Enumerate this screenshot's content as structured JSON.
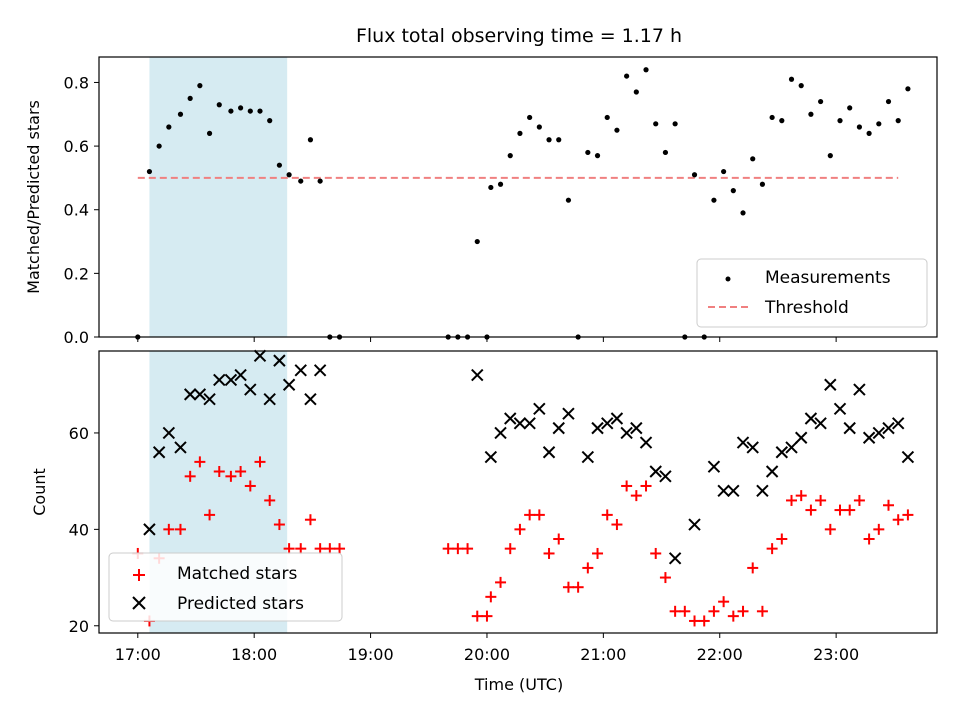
{
  "chart_data": [
    {
      "type": "scatter",
      "title": "Flux total observing time = 1.17 h",
      "xlabel": "",
      "ylabel": "Matched/Predicted stars",
      "ylim": [
        0,
        0.88
      ],
      "yticks": [
        0.0,
        0.2,
        0.4,
        0.6,
        0.8
      ],
      "ytick_labels": [
        "0.0",
        "0.2",
        "0.4",
        "0.6",
        "0.8"
      ],
      "shaded_interval": [
        "17:06",
        "18:17"
      ],
      "shaded_color": "#add8e6",
      "legend_position": "bottom-right",
      "series": [
        {
          "name": "Measurements",
          "marker": "dot",
          "color": "#000000",
          "points": [
            [
              "17:00",
              0.0
            ],
            [
              "17:06",
              0.52
            ],
            [
              "17:11",
              0.6
            ],
            [
              "17:16",
              0.66
            ],
            [
              "17:22",
              0.7
            ],
            [
              "17:27",
              0.75
            ],
            [
              "17:32",
              0.79
            ],
            [
              "17:37",
              0.64
            ],
            [
              "17:42",
              0.73
            ],
            [
              "17:48",
              0.71
            ],
            [
              "17:53",
              0.72
            ],
            [
              "17:58",
              0.71
            ],
            [
              "18:03",
              0.71
            ],
            [
              "18:08",
              0.68
            ],
            [
              "18:13",
              0.54
            ],
            [
              "18:18",
              0.51
            ],
            [
              "18:24",
              0.49
            ],
            [
              "18:29",
              0.62
            ],
            [
              "18:34",
              0.49
            ],
            [
              "18:39",
              0.0
            ],
            [
              "18:44",
              0.0
            ],
            [
              "19:40",
              0.0
            ],
            [
              "19:45",
              0.0
            ],
            [
              "19:50",
              0.0
            ],
            [
              "19:55",
              0.3
            ],
            [
              "20:00",
              0.0
            ],
            [
              "20:02",
              0.47
            ],
            [
              "20:07",
              0.48
            ],
            [
              "20:12",
              0.57
            ],
            [
              "20:17",
              0.64
            ],
            [
              "20:22",
              0.69
            ],
            [
              "20:27",
              0.66
            ],
            [
              "20:32",
              0.62
            ],
            [
              "20:37",
              0.62
            ],
            [
              "20:42",
              0.43
            ],
            [
              "20:47",
              0.0
            ],
            [
              "20:52",
              0.58
            ],
            [
              "20:57",
              0.57
            ],
            [
              "21:02",
              0.69
            ],
            [
              "21:07",
              0.65
            ],
            [
              "21:12",
              0.82
            ],
            [
              "21:17",
              0.77
            ],
            [
              "21:22",
              0.84
            ],
            [
              "21:27",
              0.67
            ],
            [
              "21:32",
              0.58
            ],
            [
              "21:37",
              0.67
            ],
            [
              "21:42",
              0.0
            ],
            [
              "21:47",
              0.51
            ],
            [
              "21:52",
              0.0
            ],
            [
              "21:57",
              0.43
            ],
            [
              "22:02",
              0.52
            ],
            [
              "22:07",
              0.46
            ],
            [
              "22:12",
              0.39
            ],
            [
              "22:17",
              0.56
            ],
            [
              "22:22",
              0.48
            ],
            [
              "22:27",
              0.69
            ],
            [
              "22:32",
              0.68
            ],
            [
              "22:37",
              0.81
            ],
            [
              "22:42",
              0.79
            ],
            [
              "22:47",
              0.7
            ],
            [
              "22:52",
              0.74
            ],
            [
              "22:57",
              0.57
            ],
            [
              "23:02",
              0.68
            ],
            [
              "23:07",
              0.72
            ],
            [
              "23:12",
              0.66
            ],
            [
              "23:17",
              0.64
            ],
            [
              "23:22",
              0.67
            ],
            [
              "23:27",
              0.74
            ],
            [
              "23:32",
              0.68
            ],
            [
              "23:37",
              0.78
            ]
          ]
        },
        {
          "name": "Threshold",
          "style": "dashed-line",
          "color": "#f08080",
          "points": [
            [
              "17:00",
              0.5
            ],
            [
              "23:32",
              0.5
            ]
          ]
        }
      ]
    },
    {
      "type": "scatter",
      "title": "",
      "xlabel": "Time (UTC)",
      "ylabel": "Count",
      "ylim": [
        18.5,
        77
      ],
      "yticks": [
        20,
        40,
        60
      ],
      "ytick_labels": [
        "20",
        "40",
        "60"
      ],
      "xlim": [
        "16:40",
        "23:52"
      ],
      "xticks": [
        "17:00",
        "18:00",
        "19:00",
        "20:00",
        "21:00",
        "22:00",
        "23:00"
      ],
      "xtick_labels": [
        "17:00",
        "18:00",
        "19:00",
        "20:00",
        "21:00",
        "22:00",
        "23:00"
      ],
      "shaded_interval": [
        "17:06",
        "18:17"
      ],
      "shaded_color": "#add8e6",
      "legend_position": "bottom-left",
      "series": [
        {
          "name": "Matched stars",
          "marker": "plus",
          "color": "#ff0000",
          "points": [
            [
              "17:00",
              35
            ],
            [
              "17:06",
              21
            ],
            [
              "17:11",
              34
            ],
            [
              "17:16",
              40
            ],
            [
              "17:22",
              40
            ],
            [
              "17:27",
              51
            ],
            [
              "17:32",
              54
            ],
            [
              "17:37",
              43
            ],
            [
              "17:42",
              52
            ],
            [
              "17:48",
              51
            ],
            [
              "17:53",
              52
            ],
            [
              "17:58",
              49
            ],
            [
              "18:03",
              54
            ],
            [
              "18:08",
              46
            ],
            [
              "18:13",
              41
            ],
            [
              "18:18",
              36
            ],
            [
              "18:24",
              36
            ],
            [
              "18:29",
              42
            ],
            [
              "18:34",
              36
            ],
            [
              "18:39",
              36
            ],
            [
              "18:44",
              36
            ],
            [
              "19:40",
              36
            ],
            [
              "19:45",
              36
            ],
            [
              "19:50",
              36
            ],
            [
              "19:55",
              22
            ],
            [
              "20:00",
              22
            ],
            [
              "20:02",
              26
            ],
            [
              "20:07",
              29
            ],
            [
              "20:12",
              36
            ],
            [
              "20:17",
              40
            ],
            [
              "20:22",
              43
            ],
            [
              "20:27",
              43
            ],
            [
              "20:32",
              35
            ],
            [
              "20:37",
              38
            ],
            [
              "20:42",
              28
            ],
            [
              "20:47",
              28
            ],
            [
              "20:52",
              32
            ],
            [
              "20:57",
              35
            ],
            [
              "21:02",
              43
            ],
            [
              "21:07",
              41
            ],
            [
              "21:12",
              49
            ],
            [
              "21:17",
              47
            ],
            [
              "21:22",
              49
            ],
            [
              "21:27",
              35
            ],
            [
              "21:32",
              30
            ],
            [
              "21:37",
              23
            ],
            [
              "21:42",
              23
            ],
            [
              "21:47",
              21
            ],
            [
              "21:52",
              21
            ],
            [
              "21:57",
              23
            ],
            [
              "22:02",
              25
            ],
            [
              "22:07",
              22
            ],
            [
              "22:12",
              23
            ],
            [
              "22:17",
              32
            ],
            [
              "22:22",
              23
            ],
            [
              "22:27",
              36
            ],
            [
              "22:32",
              38
            ],
            [
              "22:37",
              46
            ],
            [
              "22:42",
              47
            ],
            [
              "22:47",
              44
            ],
            [
              "22:52",
              46
            ],
            [
              "22:57",
              40
            ],
            [
              "23:02",
              44
            ],
            [
              "23:07",
              44
            ],
            [
              "23:12",
              46
            ],
            [
              "23:17",
              38
            ],
            [
              "23:22",
              40
            ],
            [
              "23:27",
              45
            ],
            [
              "23:32",
              42
            ],
            [
              "23:37",
              43
            ]
          ]
        },
        {
          "name": "Predicted stars",
          "marker": "x",
          "color": "#000000",
          "points": [
            [
              "17:06",
              40
            ],
            [
              "17:11",
              56
            ],
            [
              "17:16",
              60
            ],
            [
              "17:22",
              57
            ],
            [
              "17:27",
              68
            ],
            [
              "17:32",
              68
            ],
            [
              "17:37",
              67
            ],
            [
              "17:42",
              71
            ],
            [
              "17:48",
              71
            ],
            [
              "17:53",
              72
            ],
            [
              "17:58",
              69
            ],
            [
              "18:03",
              76
            ],
            [
              "18:08",
              67
            ],
            [
              "18:13",
              75
            ],
            [
              "18:18",
              70
            ],
            [
              "18:24",
              73
            ],
            [
              "18:29",
              67
            ],
            [
              "18:34",
              73
            ],
            [
              "19:55",
              72
            ],
            [
              "20:02",
              55
            ],
            [
              "20:07",
              60
            ],
            [
              "20:12",
              63
            ],
            [
              "20:17",
              62
            ],
            [
              "20:22",
              62
            ],
            [
              "20:27",
              65
            ],
            [
              "20:32",
              56
            ],
            [
              "20:37",
              61
            ],
            [
              "20:42",
              64
            ],
            [
              "20:52",
              55
            ],
            [
              "20:57",
              61
            ],
            [
              "21:02",
              62
            ],
            [
              "21:07",
              63
            ],
            [
              "21:12",
              60
            ],
            [
              "21:17",
              61
            ],
            [
              "21:22",
              58
            ],
            [
              "21:27",
              52
            ],
            [
              "21:32",
              51
            ],
            [
              "21:37",
              34
            ],
            [
              "21:47",
              41
            ],
            [
              "21:57",
              53
            ],
            [
              "22:02",
              48
            ],
            [
              "22:07",
              48
            ],
            [
              "22:12",
              58
            ],
            [
              "22:17",
              57
            ],
            [
              "22:22",
              48
            ],
            [
              "22:27",
              52
            ],
            [
              "22:32",
              56
            ],
            [
              "22:37",
              57
            ],
            [
              "22:42",
              59
            ],
            [
              "22:47",
              63
            ],
            [
              "22:52",
              62
            ],
            [
              "22:57",
              70
            ],
            [
              "23:02",
              65
            ],
            [
              "23:07",
              61
            ],
            [
              "23:12",
              69
            ],
            [
              "23:17",
              59
            ],
            [
              "23:22",
              60
            ],
            [
              "23:27",
              61
            ],
            [
              "23:32",
              62
            ],
            [
              "23:37",
              55
            ]
          ]
        }
      ]
    }
  ]
}
